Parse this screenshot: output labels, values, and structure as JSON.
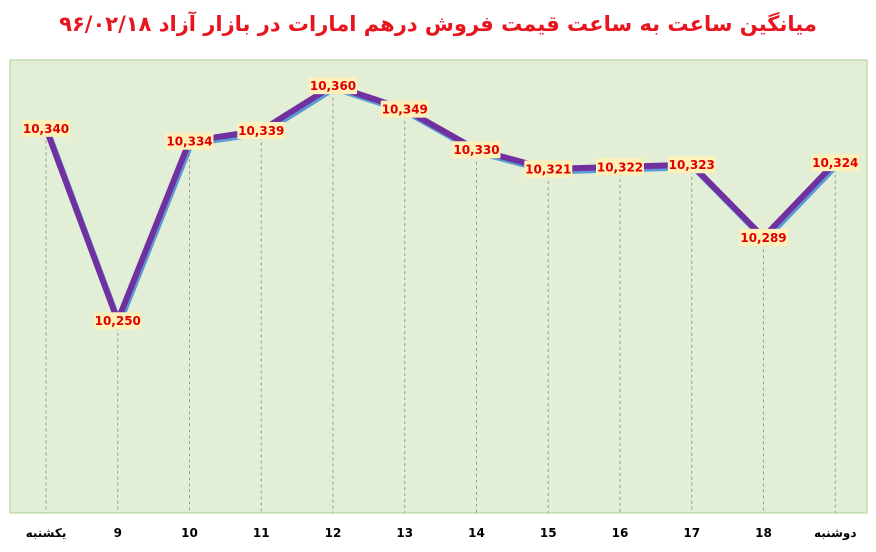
{
  "chart_data": {
    "type": "line",
    "title": "میانگین ساعت به ساعت قیمت فروش درهم امارات در بازار آزاد ۹۶/۰۲/۱۸",
    "categories": [
      "یکشنبه",
      "9",
      "10",
      "11",
      "12",
      "13",
      "14",
      "15",
      "16",
      "17",
      "18",
      "دوشنبه"
    ],
    "values": [
      10340,
      10250,
      10334,
      10339,
      10360,
      10349,
      10330,
      10321,
      10322,
      10323,
      10289,
      10324
    ],
    "data_labels": [
      "10,340",
      "10,250",
      "10,334",
      "10,339",
      "10,360",
      "10,349",
      "10,330",
      "10,321",
      "10,322",
      "10,323",
      "10,289",
      "10,324"
    ],
    "ylim": [
      10160,
      10372
    ],
    "grid": "vertical dashed",
    "legend": "none",
    "xlabel": "",
    "ylabel": "",
    "colors": {
      "title": "#e8141e",
      "plot_background": "#e3eed6",
      "plot_border": "#a9d08e",
      "line_main": "#7030a0",
      "line_shadow": "#5b9bd5",
      "label_background": "#fdf0b8",
      "label_text": "#e00000",
      "grid": "#9a9a9a"
    }
  }
}
